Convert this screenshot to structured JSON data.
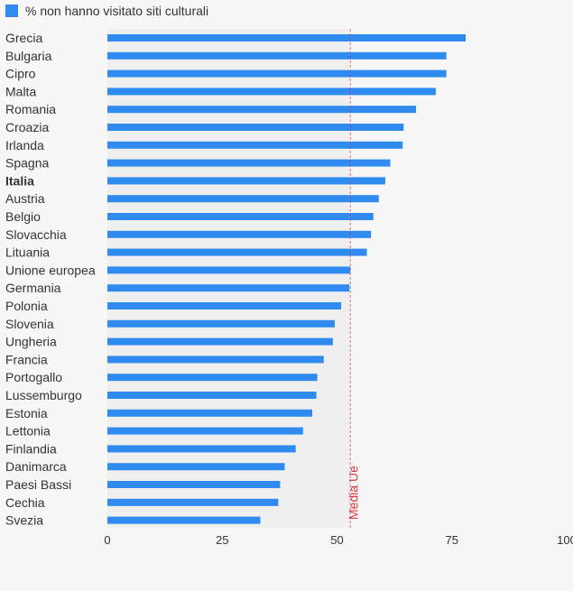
{
  "chart_data": {
    "type": "bar",
    "orientation": "horizontal",
    "series": [
      {
        "name": "% non hanno visitato siti culturali",
        "color": "#2f8bf0"
      }
    ],
    "categories": [
      "Grecia",
      "Bulgaria",
      "Cipro",
      "Malta",
      "Romania",
      "Croazia",
      "Irlanda",
      "Spagna",
      "Italia",
      "Austria",
      "Belgio",
      "Slovacchia",
      "Lituania",
      "Unione europea",
      "Germania",
      "Polonia",
      "Slovenia",
      "Ungheria",
      "Francia",
      "Portogallo",
      "Lussemburgo",
      "Estonia",
      "Lettonia",
      "Finlandia",
      "Danimarca",
      "Paesi Bassi",
      "Cechia",
      "Svezia"
    ],
    "values": [
      78,
      73.8,
      73.8,
      71.5,
      67.2,
      64.5,
      64.3,
      61.6,
      60.5,
      59.1,
      57.9,
      57.4,
      56.5,
      52.9,
      52.7,
      50.9,
      49.5,
      49.1,
      47.1,
      45.7,
      45.5,
      44.6,
      42.6,
      41,
      38.6,
      37.6,
      37.2,
      33.3
    ],
    "highlight": "Italia",
    "xlim": [
      0,
      100
    ],
    "xticks": [
      0,
      25,
      50,
      75,
      100
    ],
    "reference_line": {
      "label": "Media Ue",
      "value": 52.9,
      "color": "#d9363e"
    },
    "shaded_region": [
      0,
      52.9
    ],
    "grid": false,
    "legend_position": "top-left"
  }
}
